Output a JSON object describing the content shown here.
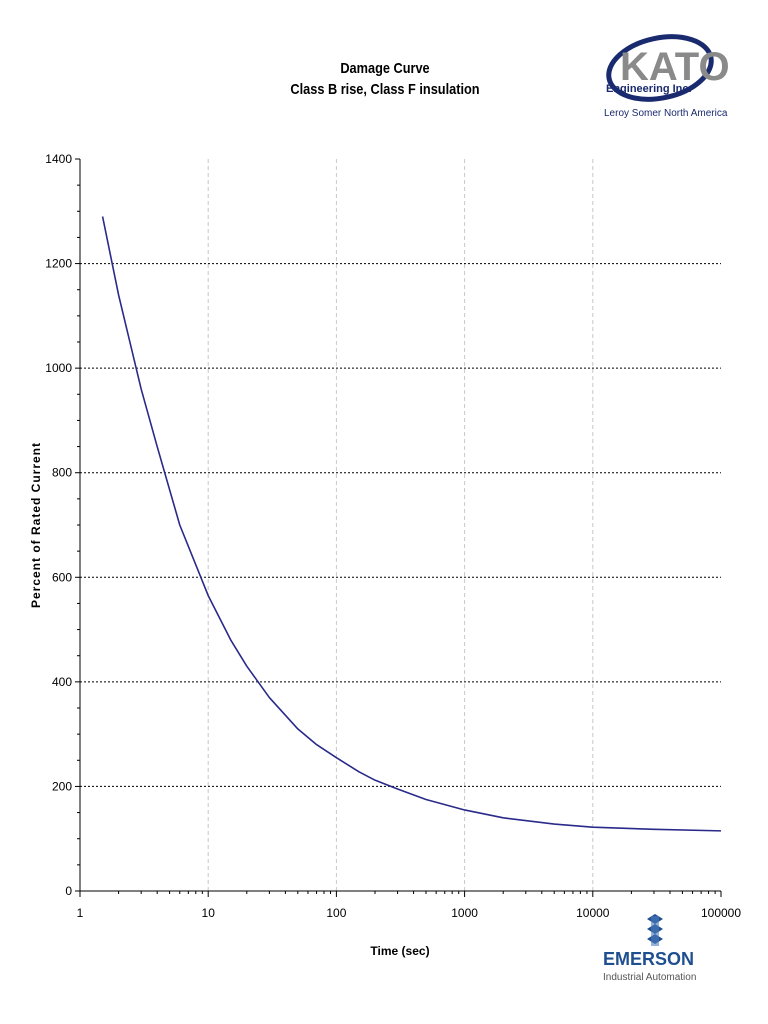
{
  "header": {
    "title_line1": "Damage Curve",
    "title_line2": "Class B rise, Class F insulation"
  },
  "logos": {
    "kato_main": "KATO",
    "kato_sub": "Engineering Inc.",
    "kato_parent": "Leroy Somer North America",
    "emerson_main": "EMERSON",
    "emerson_sub": "Industrial Automation"
  },
  "colors": {
    "curve": "#2a2a8a",
    "kato_gray": "#8a8a8a",
    "kato_navy": "#1a2a6e",
    "emerson_blue": "#1f4f8f"
  },
  "chart_data": {
    "type": "line",
    "title": "Damage Curve",
    "subtitle": "Class B rise, Class F insulation",
    "xlabel": "Time (sec)",
    "ylabel": "Percent of Rated Current",
    "x_scale": "log",
    "xlim": [
      1,
      100000
    ],
    "ylim": [
      0,
      1400
    ],
    "x_ticks": [
      1,
      10,
      100,
      1000,
      10000,
      100000
    ],
    "x_tick_labels": [
      "1",
      "10",
      "100",
      "1000",
      "10000",
      "100000"
    ],
    "y_ticks": [
      0,
      200,
      400,
      600,
      800,
      1000,
      1200,
      1400
    ],
    "y_tick_labels": [
      "0",
      "200",
      "400",
      "600",
      "800",
      "1000",
      "1200",
      "1400"
    ],
    "grid": "horizontal dotted at 200-1200, vertical dashed light at decades",
    "series": [
      {
        "x": [
          1.5,
          2,
          3,
          4,
          6,
          10,
          15,
          20,
          30,
          50,
          70,
          100,
          150,
          200,
          300,
          500,
          1000,
          2000,
          5000,
          10000,
          30000,
          100000
        ],
        "y": [
          1290,
          1140,
          960,
          850,
          700,
          565,
          480,
          430,
          370,
          310,
          280,
          255,
          228,
          212,
          195,
          175,
          155,
          140,
          128,
          122,
          118,
          115
        ]
      }
    ]
  }
}
